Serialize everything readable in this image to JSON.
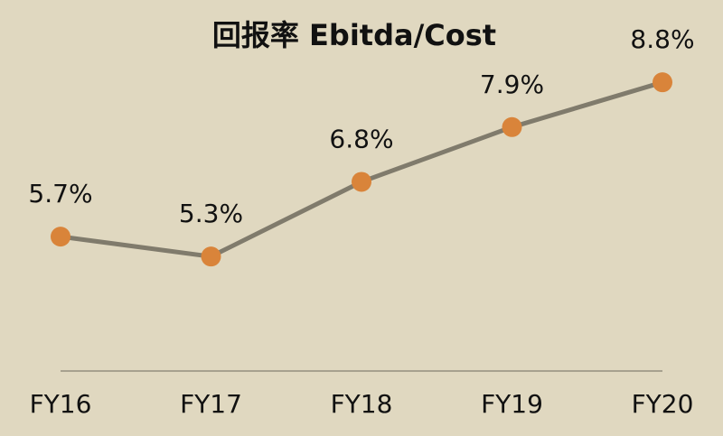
{
  "chart_data": {
    "type": "line",
    "title": "回报率 Ebitda/Cost",
    "categories": [
      "FY16",
      "FY17",
      "FY18",
      "FY19",
      "FY20"
    ],
    "values": [
      5.7,
      5.3,
      6.8,
      7.9,
      8.8
    ],
    "value_labels": [
      "5.7%",
      "5.3%",
      "6.8%",
      "7.9%",
      "8.8%"
    ],
    "color": "#807b6c",
    "marker_color": "#d9843a",
    "ylim": [
      3,
      10
    ]
  }
}
